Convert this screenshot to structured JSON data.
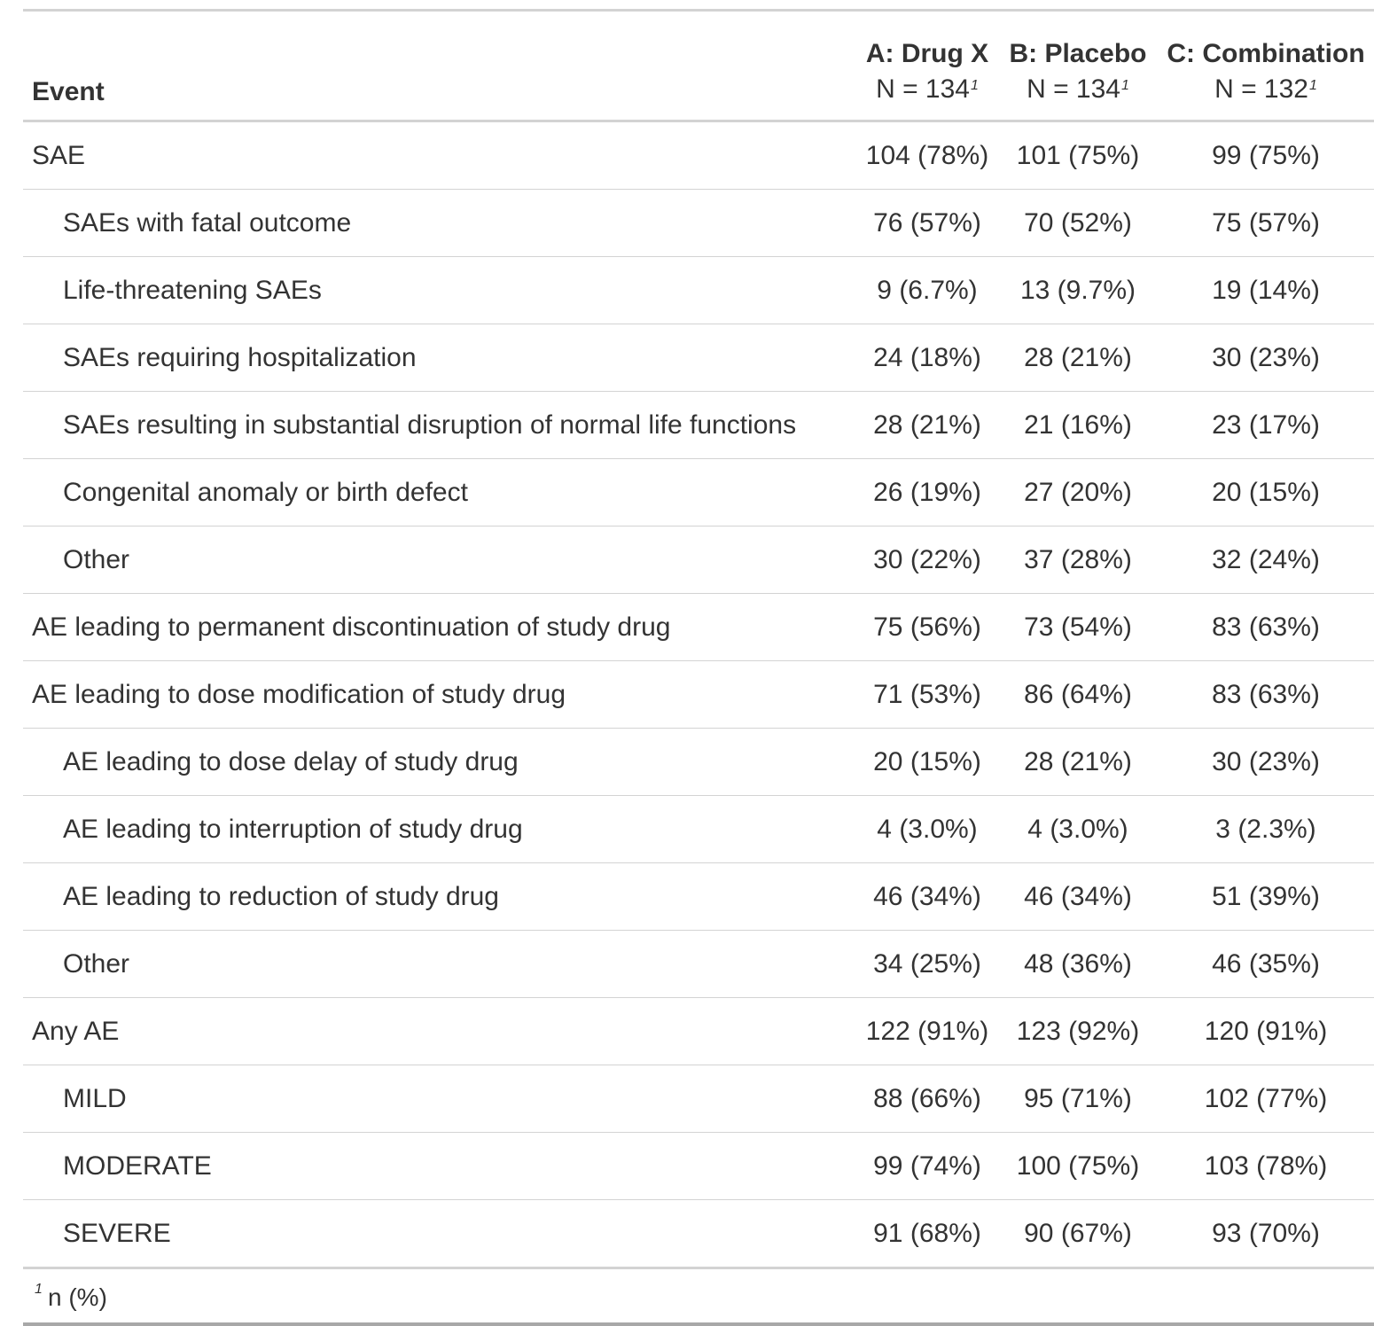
{
  "header": {
    "label_col": "Event",
    "columns": [
      {
        "name": "A: Drug X",
        "n": "N = 134",
        "footnote_mark": "1"
      },
      {
        "name": "B: Placebo",
        "n": "N = 134",
        "footnote_mark": "1"
      },
      {
        "name": "C: Combination",
        "n": "N = 132",
        "footnote_mark": "1"
      }
    ]
  },
  "rows": [
    {
      "label": "SAE",
      "indent": false,
      "values": [
        "104 (78%)",
        "101 (75%)",
        "99 (75%)"
      ]
    },
    {
      "label": "SAEs with fatal outcome",
      "indent": true,
      "values": [
        "76 (57%)",
        "70 (52%)",
        "75 (57%)"
      ]
    },
    {
      "label": "Life-threatening SAEs",
      "indent": true,
      "values": [
        "9 (6.7%)",
        "13 (9.7%)",
        "19 (14%)"
      ]
    },
    {
      "label": "SAEs requiring hospitalization",
      "indent": true,
      "values": [
        "24 (18%)",
        "28 (21%)",
        "30 (23%)"
      ]
    },
    {
      "label": "SAEs resulting in substantial disruption of normal life functions",
      "indent": true,
      "values": [
        "28 (21%)",
        "21 (16%)",
        "23 (17%)"
      ]
    },
    {
      "label": "Congenital anomaly or birth defect",
      "indent": true,
      "values": [
        "26 (19%)",
        "27 (20%)",
        "20 (15%)"
      ]
    },
    {
      "label": "Other",
      "indent": true,
      "values": [
        "30 (22%)",
        "37 (28%)",
        "32 (24%)"
      ]
    },
    {
      "label": "AE leading to permanent discontinuation of study drug",
      "indent": false,
      "values": [
        "75 (56%)",
        "73 (54%)",
        "83 (63%)"
      ]
    },
    {
      "label": "AE leading to dose modification of study drug",
      "indent": false,
      "values": [
        "71 (53%)",
        "86 (64%)",
        "83 (63%)"
      ]
    },
    {
      "label": "AE leading to dose delay of study drug",
      "indent": true,
      "values": [
        "20 (15%)",
        "28 (21%)",
        "30 (23%)"
      ]
    },
    {
      "label": "AE leading to interruption of study drug",
      "indent": true,
      "values": [
        "4 (3.0%)",
        "4 (3.0%)",
        "3 (2.3%)"
      ]
    },
    {
      "label": "AE leading to reduction of study drug",
      "indent": true,
      "values": [
        "46 (34%)",
        "46 (34%)",
        "51 (39%)"
      ]
    },
    {
      "label": "Other",
      "indent": true,
      "values": [
        "34 (25%)",
        "48 (36%)",
        "46 (35%)"
      ]
    },
    {
      "label": "Any AE",
      "indent": false,
      "values": [
        "122 (91%)",
        "123 (92%)",
        "120 (91%)"
      ]
    },
    {
      "label": "MILD",
      "indent": true,
      "values": [
        "88 (66%)",
        "95 (71%)",
        "102 (77%)"
      ]
    },
    {
      "label": "MODERATE",
      "indent": true,
      "values": [
        "99 (74%)",
        "100 (75%)",
        "103 (78%)"
      ]
    },
    {
      "label": "SEVERE",
      "indent": true,
      "values": [
        "91 (68%)",
        "90 (67%)",
        "93 (70%)"
      ]
    }
  ],
  "footnote": {
    "mark": "1",
    "text": "n (%)"
  }
}
